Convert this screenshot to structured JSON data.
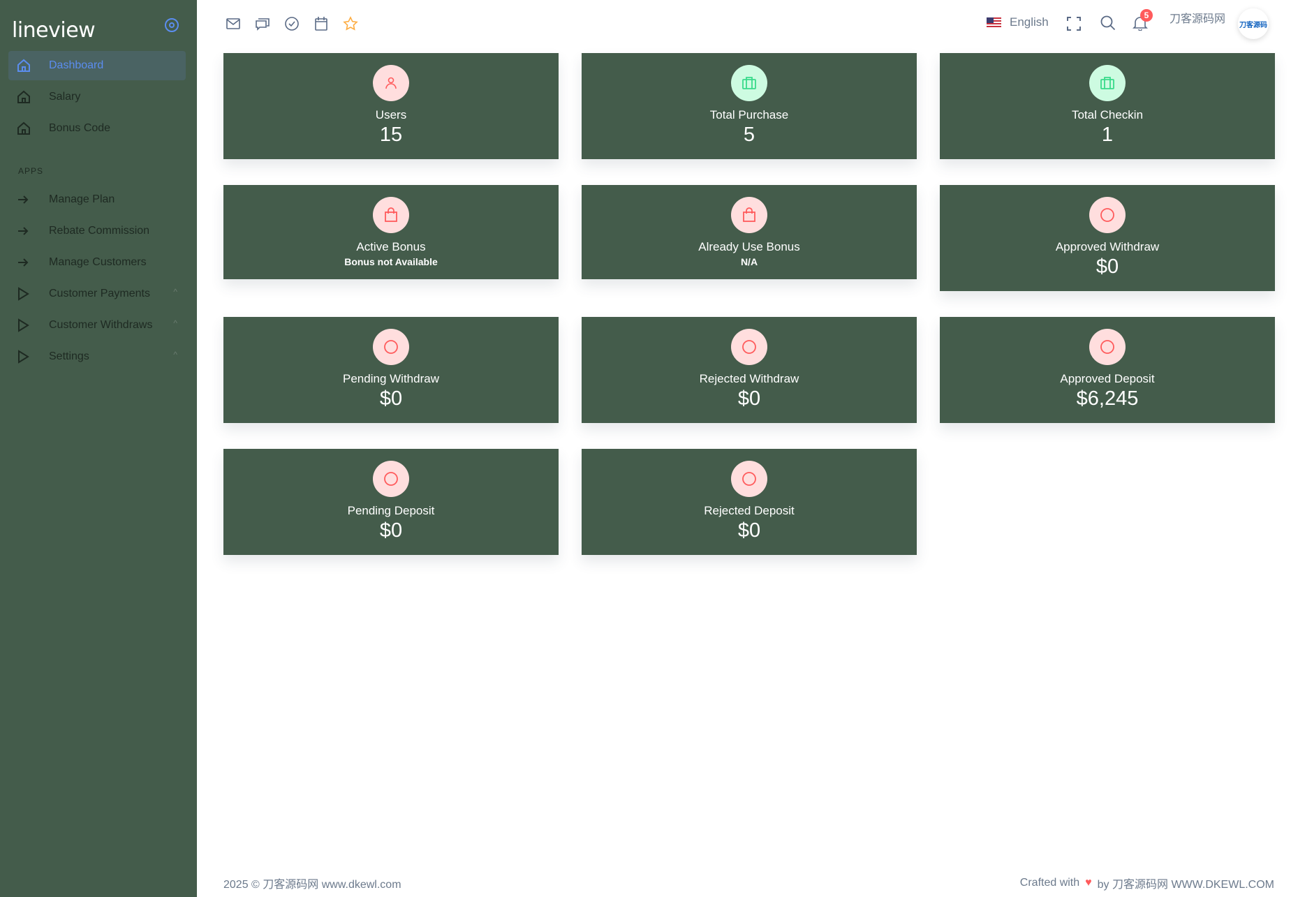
{
  "brand": "lineview",
  "sidebar": {
    "items": [
      {
        "label": "Dashboard",
        "icon": "home-icon",
        "active": true
      },
      {
        "label": "Salary",
        "icon": "home-icon"
      },
      {
        "label": "Bonus Code",
        "icon": "home-icon"
      }
    ],
    "section": "APPS",
    "apps": [
      {
        "label": "Manage Plan",
        "icon": "arrow-right-icon"
      },
      {
        "label": "Rebate Commission",
        "icon": "arrow-right-icon"
      },
      {
        "label": "Manage Customers",
        "icon": "arrow-right-icon"
      },
      {
        "label": "Customer Payments",
        "icon": "play-icon",
        "chevron": "^"
      },
      {
        "label": "Customer Withdraws",
        "icon": "play-icon",
        "chevron": "^"
      },
      {
        "label": "Settings",
        "icon": "play-icon",
        "chevron": "^"
      }
    ]
  },
  "header": {
    "language": "English",
    "notification_count": "5",
    "user_name": "刀客源码网",
    "avatar_text": "刀客源码"
  },
  "cards": [
    {
      "title": "Users",
      "value": "15",
      "icon": "user-icon",
      "tone": "red"
    },
    {
      "title": "Total Purchase",
      "value": "5",
      "icon": "briefcase-icon",
      "tone": "green"
    },
    {
      "title": "Total Checkin",
      "value": "1",
      "icon": "briefcase-icon",
      "tone": "green"
    },
    {
      "title": "Active Bonus",
      "sub": "Bonus not Available",
      "icon": "shopping-bag-icon",
      "tone": "red"
    },
    {
      "title": "Already Use Bonus",
      "sub": "N/A",
      "icon": "shopping-bag-icon",
      "tone": "red"
    },
    {
      "title": "Approved Withdraw",
      "value": "$0",
      "icon": "circle-icon",
      "tone": "red"
    },
    {
      "title": "Pending Withdraw",
      "value": "$0",
      "icon": "circle-icon",
      "tone": "red"
    },
    {
      "title": "Rejected Withdraw",
      "value": "$0",
      "icon": "circle-icon",
      "tone": "red"
    },
    {
      "title": "Approved Deposit",
      "value": "$6,245",
      "icon": "circle-icon",
      "tone": "red"
    },
    {
      "title": "Pending Deposit",
      "value": "$0",
      "icon": "circle-icon",
      "tone": "red"
    },
    {
      "title": "Rejected Deposit",
      "value": "$0",
      "icon": "circle-icon",
      "tone": "red"
    }
  ],
  "footer": {
    "left": "2025 © 刀客源码网 www.dkewl.com",
    "right_prefix": "Crafted with",
    "right_suffix": "by 刀客源码网 WWW.DKEWL.COM"
  },
  "colors": {
    "sidebar": "#445c4b",
    "card": "#445c4b",
    "accent": "#5b8def",
    "danger": "#ff5b5c",
    "success": "#39da8a"
  }
}
